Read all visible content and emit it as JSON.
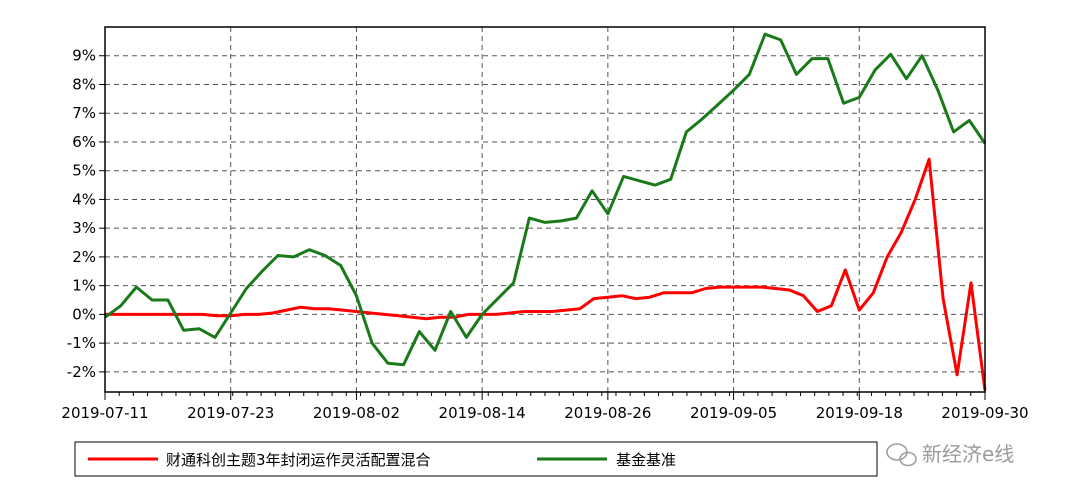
{
  "chart_data": {
    "type": "line",
    "title": "",
    "xlabel": "",
    "ylabel": "",
    "ylim": [
      -2.7,
      10.0
    ],
    "y_ticks": [
      9,
      8,
      7,
      6,
      5,
      4,
      3,
      2,
      1,
      0,
      -1,
      -2
    ],
    "y_tick_labels": [
      "9%",
      "8%",
      "7%",
      "6%",
      "5%",
      "4%",
      "3%",
      "2%",
      "1%",
      "0%",
      "-1%",
      "-2%"
    ],
    "x_tick_labels": [
      "2019-07-11",
      "2019-07-23",
      "2019-08-02",
      "2019-08-14",
      "2019-08-26",
      "2019-09-05",
      "2019-09-18",
      "2019-09-30"
    ],
    "grid": true,
    "legend_position": "bottom",
    "colors": {
      "fund": "#ff0000",
      "benchmark": "#1a7a1a"
    },
    "series": [
      {
        "name": "财通科创主题3年封闭运作灵活配置混合",
        "values": [
          0.0,
          0.0,
          0.0,
          0.0,
          0.0,
          0.0,
          0.0,
          0.0,
          -0.05,
          -0.05,
          0.0,
          0.0,
          0.05,
          0.15,
          0.25,
          0.2,
          0.2,
          0.15,
          0.1,
          0.05,
          0.0,
          -0.05,
          -0.1,
          -0.15,
          -0.1,
          -0.1,
          0.0,
          0.0,
          0.0,
          0.05,
          0.1,
          0.1,
          0.1,
          0.15,
          0.2,
          0.55,
          0.6,
          0.65,
          0.55,
          0.6,
          0.75,
          0.75,
          0.75,
          0.9,
          0.95,
          0.95,
          0.95,
          0.95,
          0.9,
          0.85,
          0.65,
          0.1,
          0.3,
          1.55,
          0.15,
          0.75,
          2.0,
          2.85,
          4.0,
          5.4,
          0.55,
          -2.1,
          1.1,
          -2.65
        ]
      },
      {
        "name": "基金基准",
        "values": [
          -0.1,
          0.3,
          0.95,
          0.5,
          0.5,
          -0.55,
          -0.5,
          -0.8,
          0.05,
          0.9,
          1.5,
          2.05,
          2.0,
          2.25,
          2.05,
          1.7,
          0.65,
          -1.0,
          -1.7,
          -1.75,
          -0.6,
          -1.25,
          0.1,
          -0.8,
          0.0,
          0.55,
          1.1,
          3.35,
          3.2,
          3.25,
          3.35,
          4.3,
          3.5,
          4.8,
          4.65,
          4.5,
          4.7,
          6.35,
          6.8,
          7.3,
          7.8,
          8.35,
          9.75,
          9.55,
          8.35,
          8.9,
          8.9,
          7.35,
          7.55,
          8.5,
          9.05,
          8.2,
          9.0,
          7.8,
          6.35,
          6.75,
          5.95
        ]
      }
    ]
  },
  "watermark": {
    "text": "新经济e线",
    "icon": "wechat-icon"
  }
}
